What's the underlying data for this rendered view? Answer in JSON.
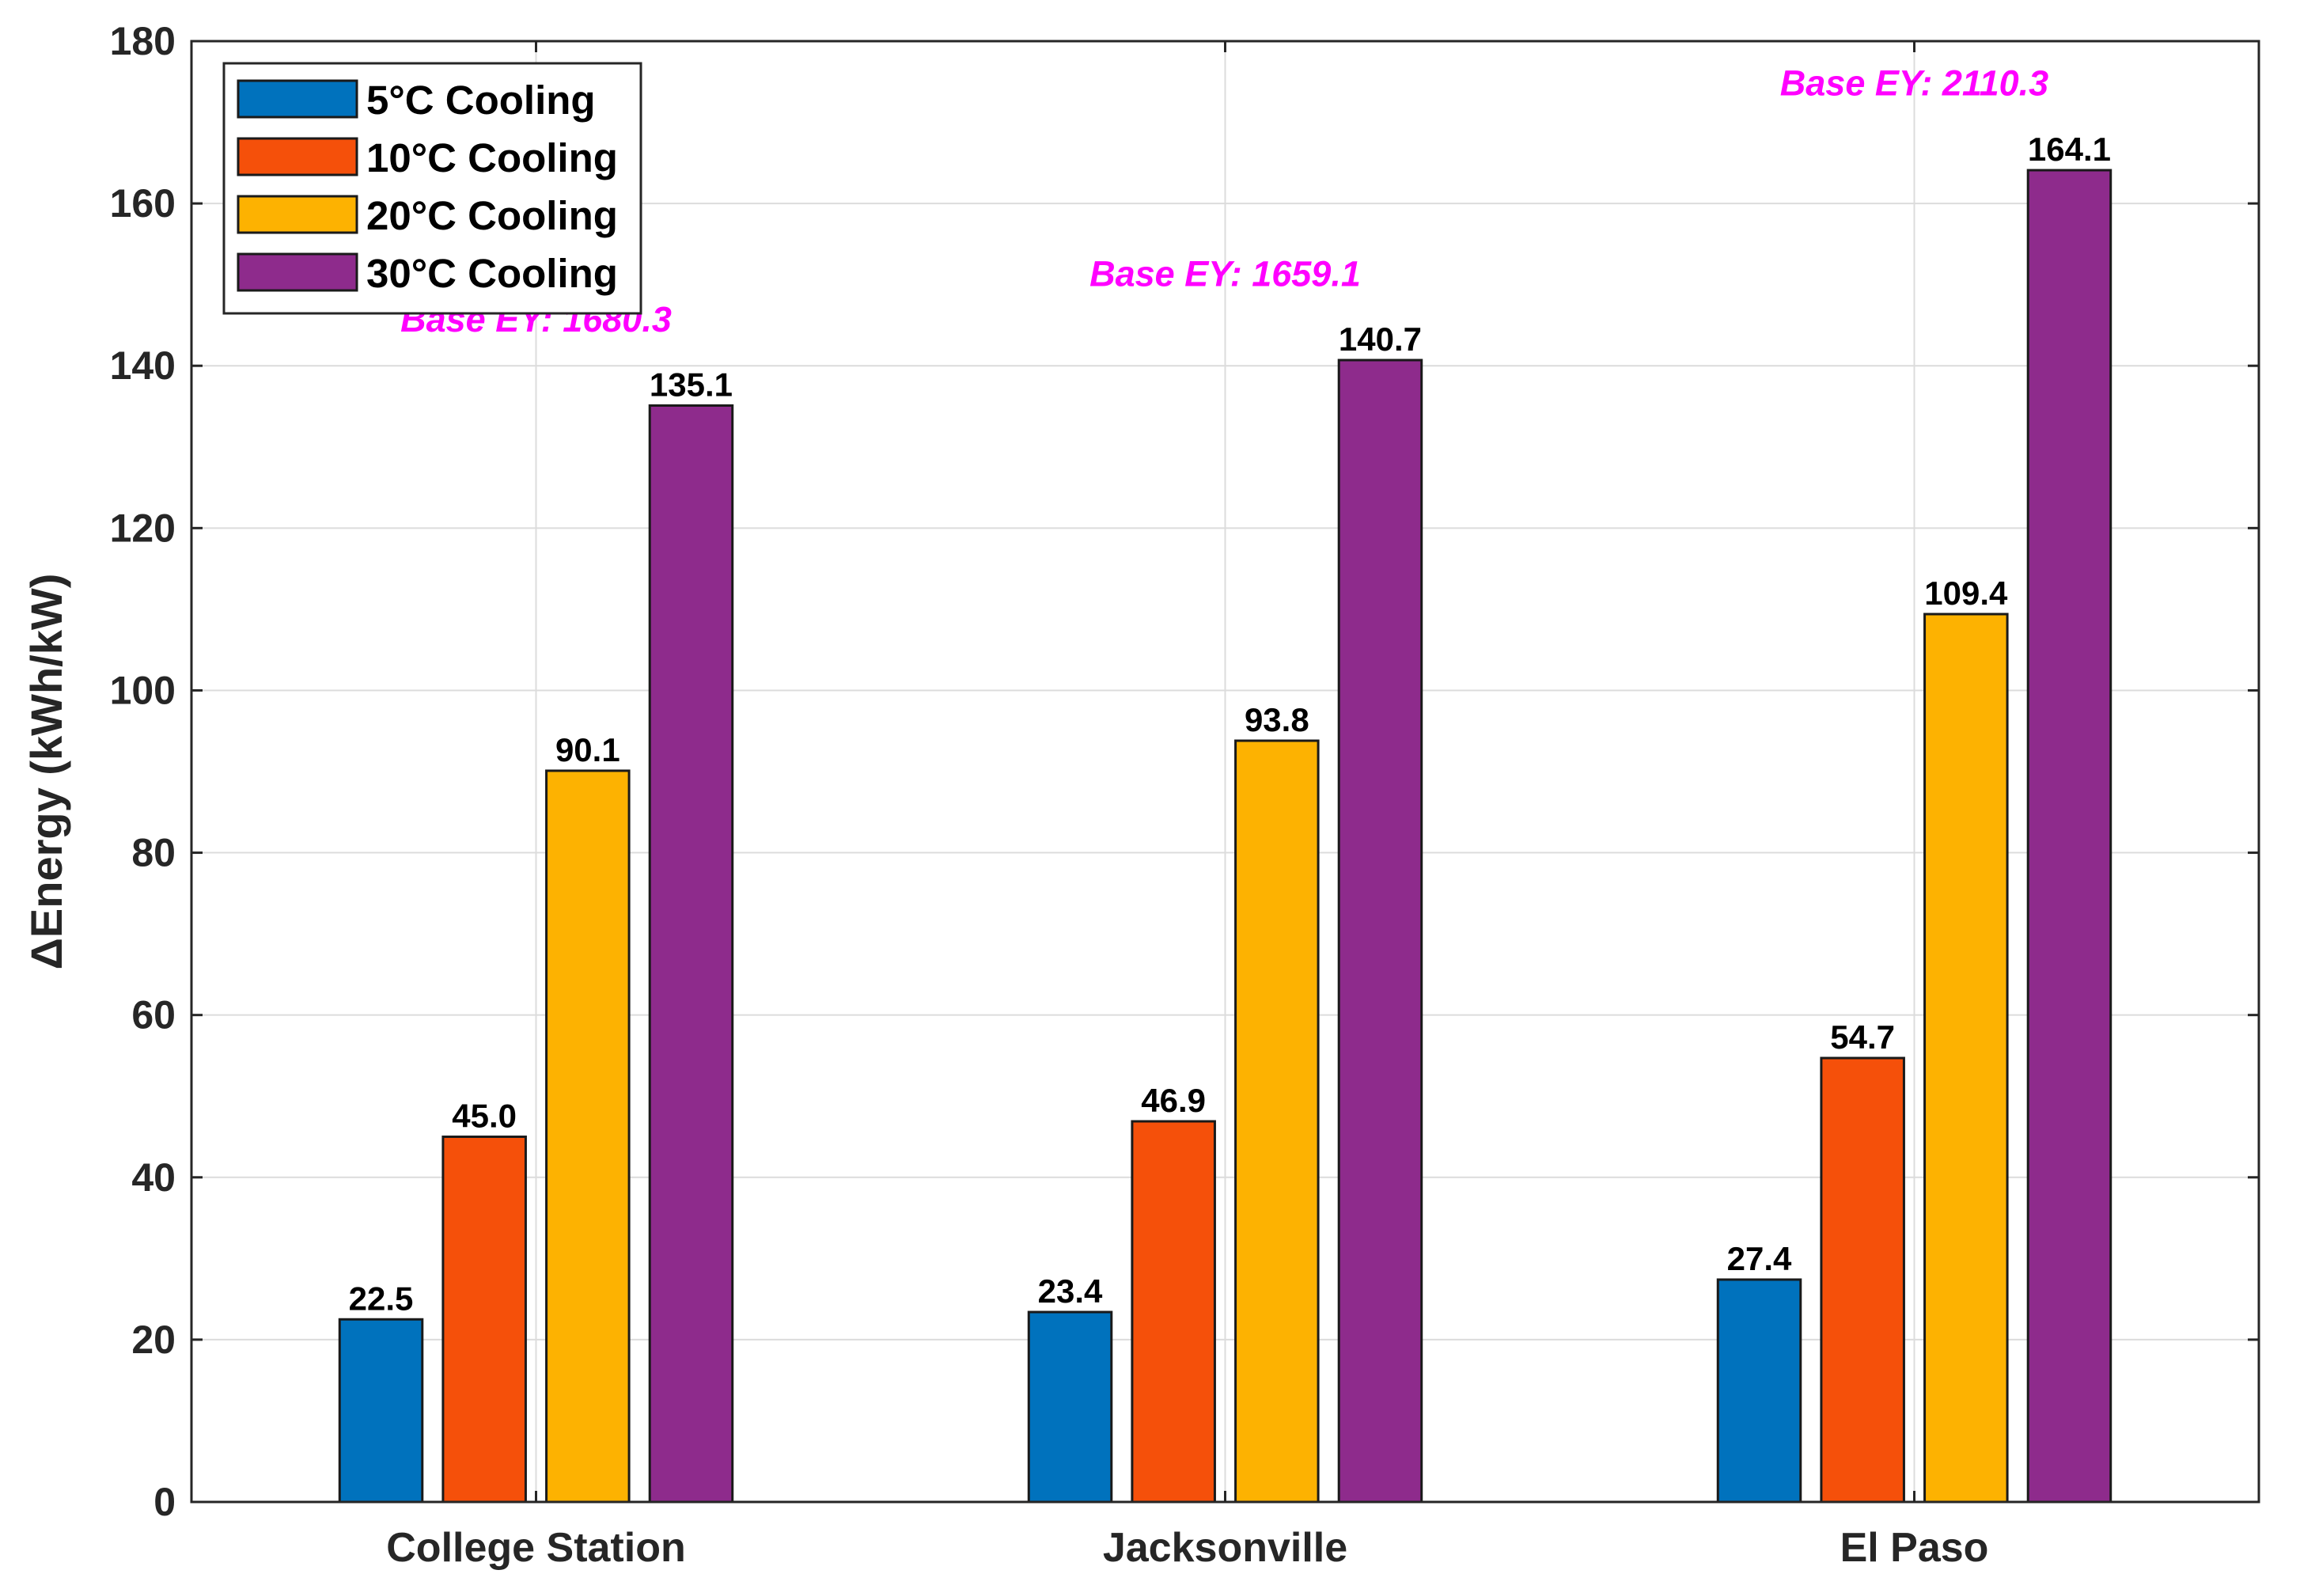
{
  "chart_data": {
    "type": "bar",
    "title": "",
    "xlabel": "",
    "ylabel": "ΔEnergy (kWh/kW)",
    "ylim": [
      0,
      180
    ],
    "yticks": [
      0,
      20,
      40,
      60,
      80,
      100,
      120,
      140,
      160,
      180
    ],
    "grid": true,
    "legend_position": "top-left",
    "categories": [
      "College Station",
      "Jacksonville",
      "El Paso"
    ],
    "series": [
      {
        "name": "5°C Cooling",
        "color": "#0072BD",
        "values": [
          22.5,
          23.4,
          27.4
        ],
        "labels": [
          "22.5",
          "23.4",
          "27.4"
        ]
      },
      {
        "name": "10°C Cooling",
        "color": "#F5500A",
        "values": [
          45.0,
          46.9,
          54.7
        ],
        "labels": [
          "45.0",
          "46.9",
          "54.7"
        ]
      },
      {
        "name": "20°C Cooling",
        "color": "#FDB201",
        "values": [
          90.1,
          93.8,
          109.4
        ],
        "labels": [
          "90.1",
          "93.8",
          "109.4"
        ]
      },
      {
        "name": "30°C Cooling",
        "color": "#8E2B8C",
        "values": [
          135.1,
          140.7,
          164.1
        ],
        "labels": [
          "135.1",
          "140.7",
          "164.1"
        ]
      }
    ],
    "annotations": [
      {
        "text": "Base EY: 1680.3",
        "category": "College Station",
        "y": 144.2
      },
      {
        "text": "Base EY: 1659.1",
        "category": "Jacksonville",
        "y": 149.8
      },
      {
        "text": "Base EY: 2110.3",
        "category": "El Paso",
        "y": 173.3
      }
    ],
    "annotation_color": "#FF00FF"
  }
}
